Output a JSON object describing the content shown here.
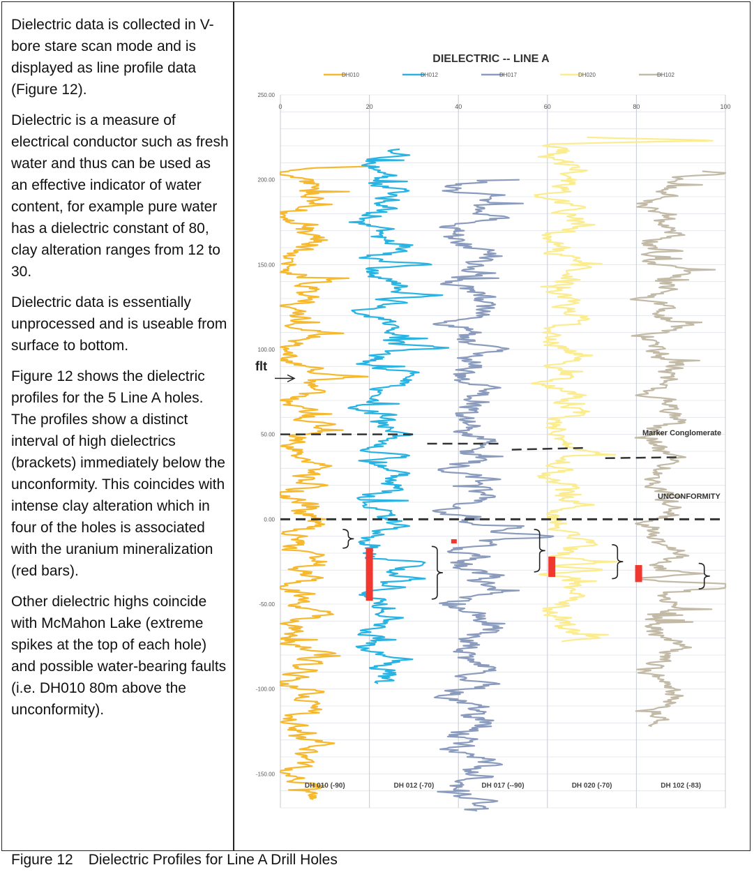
{
  "paragraphs": [
    "Dielectric data is collected in V-bore stare scan mode and is displayed as line profile data (Figure 12).",
    "Dielectric is a measure of electrical conductor such as fresh water and thus can be used as an effective indicator of water content, for example pure water has a dielectric constant of 80, clay alteration ranges from 12 to 30.",
    "Dielectric data is essentially unprocessed and is useable from surface to bottom.",
    "Figure 12 shows the dielectric profiles for the 5 Line A holes.  The profiles show a distinct interval of high dielectrics (brackets) immediately below the unconformity.  This coincides with intense clay alteration which in four of the holes is associated with the uranium mineralization (red bars).",
    "Other dielectric highs coincide with McMahon Lake (extreme spikes at the top of each hole) and possible water-bearing faults (i.e. DH010 80m above the unconformity)."
  ],
  "caption": {
    "label": "Figure 12",
    "text": "Dielectric Profiles for Line A Drill Holes"
  },
  "chart_data": {
    "type": "line",
    "title": "DIELECTRIC -- LINE A",
    "xlim": [
      0,
      100
    ],
    "ylim": [
      -170,
      250
    ],
    "x_ticks": [
      "0",
      "20",
      "40",
      "60",
      "80",
      "100"
    ],
    "y_ticks": [
      "250.00",
      "200.00",
      "150.00",
      "100.00",
      "50.00",
      "0.00",
      "-50.00",
      "-100.00",
      "-150.00"
    ],
    "grid": true,
    "legend_position": "top",
    "series": [
      {
        "name": "DH010",
        "color": "#f5b82e",
        "base": 5,
        "amp": 3.0,
        "top": 208,
        "bottom": -165,
        "seed": 1.3,
        "spikes": [
          [
            219,
            40
          ],
          [
            215,
            76
          ],
          [
            209,
            42
          ],
          [
            84,
            17
          ],
          [
            128,
            9
          ],
          [
            150,
            7
          ],
          [
            20,
            8
          ],
          [
            -10,
            10
          ],
          [
            -93,
            7
          ],
          [
            -102,
            8
          ],
          [
            -120,
            5
          ]
        ]
      },
      {
        "name": "DH012",
        "color": "#29b3e3",
        "base": 23,
        "amp": 2.8,
        "top": 218,
        "bottom": -97,
        "seed": 2.1,
        "spikes": [
          [
            227,
            15
          ],
          [
            222,
            94
          ],
          [
            202,
            26
          ],
          [
            150,
            36
          ],
          [
            132,
            33
          ],
          [
            101,
            40
          ],
          [
            87,
            31
          ],
          [
            37,
            31
          ],
          [
            -25,
            27
          ],
          [
            -35,
            33
          ],
          [
            -40,
            30
          ]
        ]
      },
      {
        "name": "DH017",
        "color": "#8a9bbd",
        "base": 43,
        "amp": 3.2,
        "top": 200,
        "bottom": -172,
        "seed": 3.7,
        "spikes": [
          [
            204,
            100
          ],
          [
            191,
            49
          ],
          [
            178,
            51
          ],
          [
            145,
            46
          ],
          [
            -5,
            56
          ],
          [
            -10,
            58
          ],
          [
            -15,
            53
          ],
          [
            -22,
            48
          ]
        ]
      },
      {
        "name": "DH020",
        "color": "#fbec8f",
        "base": 64,
        "amp": 2.8,
        "top": 225,
        "bottom": -72,
        "seed": 4.9,
        "spikes": [
          [
            229,
            100
          ],
          [
            223,
            99
          ],
          [
            90,
            60
          ],
          [
            -25,
            75
          ],
          [
            -30,
            74
          ]
        ]
      },
      {
        "name": "DH102",
        "color": "#c2baa6",
        "base": 86,
        "amp": 2.6,
        "top": 205,
        "bottom": -122,
        "seed": 6.2,
        "spikes": [
          [
            209,
            100
          ],
          [
            204,
            100
          ],
          [
            -32,
            99
          ],
          [
            -38,
            99
          ],
          [
            -40,
            98
          ]
        ]
      }
    ],
    "markers": {
      "ore_bars": [
        {
          "x": 20,
          "y_top": -17,
          "y_bottom": -48
        },
        {
          "x": 61,
          "y_top": -22,
          "y_bottom": -34
        },
        {
          "x": 80.5,
          "y_top": -27,
          "y_bottom": -37
        }
      ],
      "ore_small": [
        {
          "x": 39,
          "y": -13
        }
      ],
      "brackets": [
        {
          "x": 14,
          "y_top": -6,
          "y_bottom": -17
        },
        {
          "x": 34,
          "y_top": -16,
          "y_bottom": -47
        },
        {
          "x": 57,
          "y_top": -6,
          "y_bottom": -31
        },
        {
          "x": 74.5,
          "y_top": -15,
          "y_bottom": -35
        },
        {
          "x": 94,
          "y_top": -26,
          "y_bottom": -41
        }
      ],
      "dashed_lines": [
        {
          "x1": 0,
          "x2": 30,
          "y1": 50,
          "y2": 50
        },
        {
          "x1": 33,
          "x2": 49,
          "y1": 44.5,
          "y2": 44.5
        },
        {
          "x1": 52,
          "x2": 68,
          "y1": 41,
          "y2": 42
        },
        {
          "x1": 73,
          "x2": 89,
          "y1": 36,
          "y2": 36.5
        },
        {
          "x1": 0,
          "x2": 100,
          "y1": 0,
          "y2": 0
        }
      ]
    },
    "annotations": {
      "fault_label": "flt",
      "fault_y": 83,
      "marker_label": "Marker Conglomerate",
      "unconformity_label": "UNCONFORMITY"
    },
    "hole_labels": [
      "DH 010 (-90)",
      "DH 012 (-70)",
      "DH 017 (--90)",
      "DH 020 (-70)",
      "DH 102 (-83)"
    ]
  }
}
